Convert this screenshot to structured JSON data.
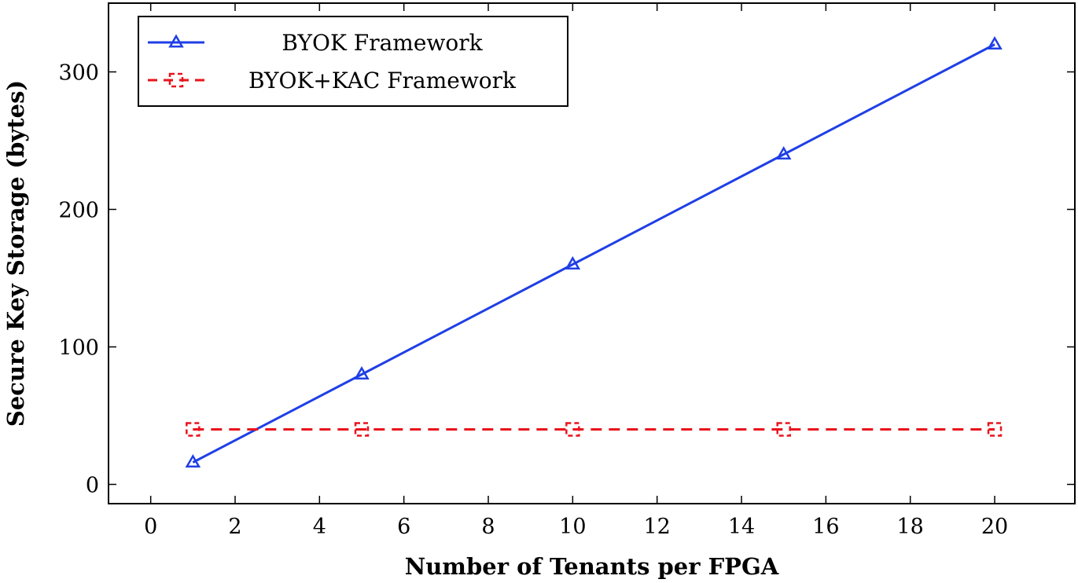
{
  "chart_data": {
    "type": "line",
    "xlabel": "Number of Tenants per FPGA",
    "ylabel": "Secure Key Storage (bytes)",
    "xlim": [
      -1,
      21.9
    ],
    "ylim": [
      -14,
      350
    ],
    "xticks": [
      0,
      2,
      4,
      6,
      8,
      10,
      12,
      14,
      16,
      18,
      20
    ],
    "yticks": [
      0,
      100,
      200,
      300
    ],
    "grid": false,
    "legend_position": "top-left",
    "series": [
      {
        "name": "BYOK Framework",
        "x": [
          1,
          5,
          10,
          15,
          20
        ],
        "y": [
          16,
          80,
          160,
          240,
          320
        ],
        "color": "#1f3fe6",
        "line_style": "solid",
        "marker": "triangle"
      },
      {
        "name": "BYOK+KAC Framework",
        "x": [
          1,
          5,
          10,
          15,
          20
        ],
        "y": [
          40,
          40,
          40,
          40,
          40
        ],
        "color": "#e8141c",
        "line_style": "dashed",
        "marker": "bracket-square"
      }
    ]
  }
}
